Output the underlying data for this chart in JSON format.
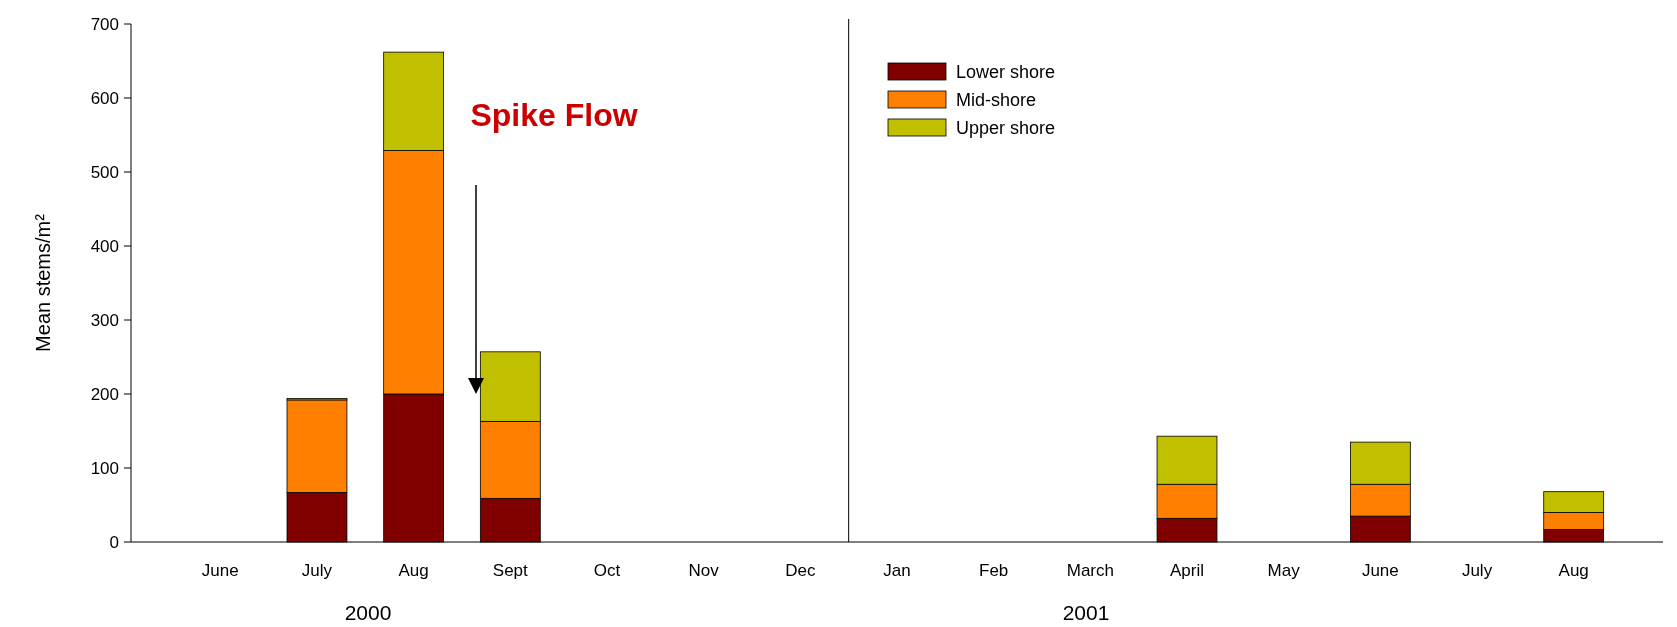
{
  "chart_data": {
    "type": "bar",
    "stacked": true,
    "ylabel": "Mean stems/m²",
    "categories": [
      "June",
      "July",
      "Aug",
      "Sept",
      "Oct",
      "Nov",
      "Dec",
      "Jan",
      "Feb",
      "March",
      "April",
      "May",
      "June",
      "July",
      "Aug"
    ],
    "series": [
      {
        "name": "Lower shore",
        "color": "#800000",
        "values": [
          0,
          67,
          200,
          59,
          0,
          0,
          0,
          0,
          0,
          0,
          32,
          0,
          35,
          0,
          17
        ]
      },
      {
        "name": "Mid-shore",
        "color": "#ff8000",
        "values": [
          0,
          125,
          329,
          104,
          0,
          0,
          0,
          0,
          0,
          0,
          46,
          0,
          43,
          0,
          23
        ]
      },
      {
        "name": "Upper shore",
        "color": "#c0c000",
        "values": [
          0,
          2,
          133,
          94,
          0,
          0,
          0,
          0,
          0,
          0,
          65,
          0,
          57,
          0,
          28
        ]
      }
    ],
    "ylim": [
      0,
      700
    ],
    "yticks": [
      0,
      100,
      200,
      300,
      400,
      500,
      600,
      700
    ],
    "grid": false,
    "legend": "top right",
    "annotations": [
      "Spike Flow",
      "2000",
      "2001"
    ]
  }
}
